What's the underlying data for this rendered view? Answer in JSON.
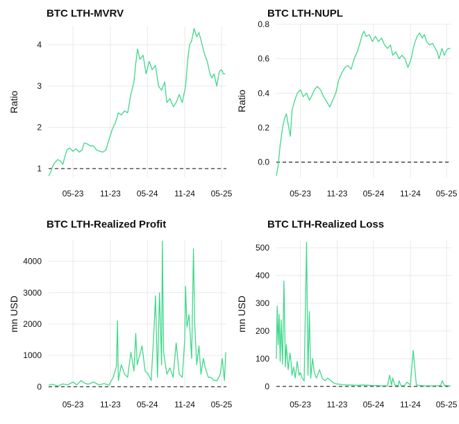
{
  "colors": {
    "series": "#3fd88a",
    "reference": "#222222",
    "grid": "#e9e9e9"
  },
  "chart_data": [
    {
      "type": "line",
      "title": "BTC LTH-MVRV",
      "ylabel": "Ratio",
      "ylim": [
        0.78,
        4.45
      ],
      "yticks": [
        1,
        2,
        3,
        4
      ],
      "ytick_labels": [
        "1",
        "2",
        "3",
        "4"
      ],
      "xlim": [
        "2023-01-01",
        "2025-05-25"
      ],
      "xticks": [
        "2023-05-01",
        "2023-11-01",
        "2024-05-01",
        "2024-11-01",
        "2025-05-01"
      ],
      "xtick_labels": [
        "05-23",
        "11-23",
        "05-24",
        "11-24",
        "05-25"
      ],
      "reference_line": 1,
      "grid": true,
      "series": [
        {
          "x": [
            "2023-01-01",
            "2023-01-10",
            "2023-01-20",
            "2023-02-01",
            "2023-02-15",
            "2023-03-01",
            "2023-03-12",
            "2023-03-20",
            "2023-04-01",
            "2023-04-15",
            "2023-05-01",
            "2023-05-15",
            "2023-06-01",
            "2023-06-15",
            "2023-06-25",
            "2023-07-10",
            "2023-07-25",
            "2023-08-10",
            "2023-08-25",
            "2023-09-10",
            "2023-09-25",
            "2023-10-10",
            "2023-10-25",
            "2023-11-10",
            "2023-11-25",
            "2023-12-10",
            "2023-12-25",
            "2024-01-10",
            "2024-01-25",
            "2024-02-10",
            "2024-02-25",
            "2024-03-05",
            "2024-03-14",
            "2024-03-25",
            "2024-04-10",
            "2024-04-25",
            "2024-05-10",
            "2024-05-25",
            "2024-06-10",
            "2024-06-25",
            "2024-07-10",
            "2024-07-25",
            "2024-08-05",
            "2024-08-20",
            "2024-09-06",
            "2024-09-20",
            "2024-10-05",
            "2024-10-20",
            "2024-11-05",
            "2024-11-15",
            "2024-11-25",
            "2024-12-05",
            "2024-12-17",
            "2024-12-30",
            "2025-01-10",
            "2025-01-21",
            "2025-02-05",
            "2025-02-20",
            "2025-03-05",
            "2025-03-15",
            "2025-03-25",
            "2025-04-08",
            "2025-04-20",
            "2025-05-01",
            "2025-05-10",
            "2025-05-20"
          ],
          "y": [
            0.82,
            0.9,
            1.05,
            1.15,
            1.22,
            1.18,
            1.1,
            1.25,
            1.45,
            1.5,
            1.42,
            1.48,
            1.4,
            1.45,
            1.62,
            1.6,
            1.55,
            1.55,
            1.45,
            1.42,
            1.4,
            1.45,
            1.7,
            1.95,
            2.1,
            2.35,
            2.3,
            2.4,
            2.35,
            2.8,
            3.1,
            3.55,
            3.9,
            3.65,
            3.75,
            3.3,
            3.6,
            3.4,
            3.5,
            3.0,
            2.9,
            3.1,
            2.6,
            2.7,
            2.5,
            2.6,
            2.8,
            2.6,
            3.0,
            3.6,
            4.0,
            4.1,
            4.4,
            4.2,
            4.3,
            4.1,
            3.8,
            3.6,
            3.3,
            3.2,
            3.3,
            3.0,
            3.35,
            3.4,
            3.3,
            3.3
          ]
        }
      ]
    },
    {
      "type": "line",
      "title": "BTC LTH-NUPL",
      "ylabel": "Ratio",
      "ylim": [
        -0.09,
        0.8
      ],
      "yticks": [
        0.0,
        0.2,
        0.4,
        0.6,
        0.8
      ],
      "ytick_labels": [
        "0.0",
        "0.2",
        "0.4",
        "0.6",
        "0.8"
      ],
      "xlim": [
        "2023-01-01",
        "2025-05-25"
      ],
      "xticks": [
        "2023-05-01",
        "2023-11-01",
        "2024-05-01",
        "2024-11-01",
        "2025-05-01"
      ],
      "xtick_labels": [
        "05-23",
        "11-23",
        "05-24",
        "11-24",
        "05-25"
      ],
      "reference_line": 0,
      "grid": true,
      "series": [
        {
          "x": [
            "2023-01-01",
            "2023-01-10",
            "2023-01-20",
            "2023-02-01",
            "2023-02-10",
            "2023-02-20",
            "2023-03-01",
            "2023-03-12",
            "2023-03-20",
            "2023-04-01",
            "2023-04-15",
            "2023-05-01",
            "2023-05-15",
            "2023-06-01",
            "2023-06-15",
            "2023-06-25",
            "2023-07-10",
            "2023-07-25",
            "2023-08-10",
            "2023-08-25",
            "2023-09-10",
            "2023-09-25",
            "2023-10-10",
            "2023-10-25",
            "2023-11-10",
            "2023-11-25",
            "2023-12-10",
            "2023-12-25",
            "2024-01-10",
            "2024-01-25",
            "2024-02-10",
            "2024-02-25",
            "2024-03-05",
            "2024-03-14",
            "2024-03-25",
            "2024-04-10",
            "2024-04-25",
            "2024-05-10",
            "2024-05-25",
            "2024-06-10",
            "2024-06-25",
            "2024-07-10",
            "2024-07-25",
            "2024-08-05",
            "2024-08-20",
            "2024-09-06",
            "2024-09-20",
            "2024-10-05",
            "2024-10-20",
            "2024-11-05",
            "2024-11-15",
            "2024-11-25",
            "2024-12-05",
            "2024-12-17",
            "2024-12-30",
            "2025-01-10",
            "2025-01-21",
            "2025-02-05",
            "2025-02-20",
            "2025-03-05",
            "2025-03-15",
            "2025-03-25",
            "2025-04-08",
            "2025-04-20",
            "2025-05-01",
            "2025-05-10",
            "2025-05-20"
          ],
          "y": [
            -0.08,
            -0.02,
            0.1,
            0.2,
            0.25,
            0.28,
            0.22,
            0.15,
            0.3,
            0.35,
            0.4,
            0.42,
            0.38,
            0.4,
            0.36,
            0.38,
            0.42,
            0.44,
            0.42,
            0.38,
            0.35,
            0.32,
            0.36,
            0.4,
            0.48,
            0.52,
            0.55,
            0.56,
            0.54,
            0.6,
            0.64,
            0.7,
            0.74,
            0.76,
            0.73,
            0.74,
            0.7,
            0.73,
            0.7,
            0.72,
            0.68,
            0.66,
            0.68,
            0.62,
            0.64,
            0.6,
            0.62,
            0.6,
            0.55,
            0.6,
            0.66,
            0.7,
            0.73,
            0.75,
            0.72,
            0.74,
            0.7,
            0.68,
            0.69,
            0.66,
            0.64,
            0.6,
            0.66,
            0.62,
            0.65,
            0.66,
            0.66
          ]
        }
      ]
    },
    {
      "type": "line",
      "title": "BTC LTH-Realized Profit",
      "ylabel": "mn USD",
      "ylim": [
        -60,
        4700
      ],
      "yticks": [
        0,
        1000,
        2000,
        3000,
        4000
      ],
      "ytick_labels": [
        "0",
        "1000",
        "2000",
        "3000",
        "4000"
      ],
      "xlim": [
        "2023-01-01",
        "2025-05-25"
      ],
      "xticks": [
        "2023-05-01",
        "2023-11-01",
        "2024-05-01",
        "2024-11-01",
        "2025-05-01"
      ],
      "xtick_labels": [
        "05-23",
        "11-23",
        "05-24",
        "11-24",
        "05-25"
      ],
      "reference_line": 0,
      "grid": true,
      "series": [
        {
          "x": [
            "2023-01-01",
            "2023-01-20",
            "2023-02-15",
            "2023-03-12",
            "2023-04-05",
            "2023-05-01",
            "2023-05-20",
            "2023-06-10",
            "2023-06-25",
            "2023-07-15",
            "2023-08-10",
            "2023-09-05",
            "2023-10-01",
            "2023-10-25",
            "2023-11-15",
            "2023-12-01",
            "2023-12-06",
            "2023-12-10",
            "2023-12-25",
            "2024-01-10",
            "2024-01-25",
            "2024-02-10",
            "2024-02-25",
            "2024-03-05",
            "2024-03-12",
            "2024-03-20",
            "2024-04-05",
            "2024-04-20",
            "2024-05-05",
            "2024-05-20",
            "2024-06-01",
            "2024-06-10",
            "2024-06-20",
            "2024-06-30",
            "2024-07-10",
            "2024-07-14",
            "2024-07-20",
            "2024-08-05",
            "2024-08-20",
            "2024-09-05",
            "2024-09-20",
            "2024-10-05",
            "2024-10-20",
            "2024-11-01",
            "2024-11-05",
            "2024-11-12",
            "2024-11-22",
            "2024-12-05",
            "2024-12-14",
            "2024-12-20",
            "2024-12-30",
            "2025-01-10",
            "2025-01-20",
            "2025-02-01",
            "2025-02-10",
            "2025-02-25",
            "2025-03-10",
            "2025-03-25",
            "2025-04-10",
            "2025-04-25",
            "2025-05-05",
            "2025-05-15",
            "2025-05-22"
          ],
          "y": [
            50,
            80,
            20,
            90,
            60,
            150,
            60,
            200,
            120,
            80,
            150,
            60,
            100,
            50,
            300,
            650,
            2100,
            200,
            700,
            400,
            300,
            1100,
            500,
            1700,
            700,
            900,
            1300,
            500,
            400,
            200,
            1600,
            2900,
            300,
            3000,
            700,
            4650,
            1100,
            400,
            600,
            300,
            1400,
            400,
            300,
            1500,
            3200,
            1900,
            2300,
            900,
            4400,
            2000,
            700,
            1300,
            400,
            900,
            600,
            300,
            300,
            200,
            200,
            400,
            900,
            200,
            1100
          ]
        }
      ]
    },
    {
      "type": "line",
      "title": "BTC LTH-Realized Loss",
      "ylabel": "mn USD",
      "ylim": [
        -8,
        530
      ],
      "yticks": [
        0,
        100,
        200,
        300,
        400,
        500
      ],
      "ytick_labels": [
        "0",
        "100",
        "200",
        "300",
        "400",
        "500"
      ],
      "xlim": [
        "2023-01-01",
        "2025-05-25"
      ],
      "xticks": [
        "2023-05-01",
        "2023-11-01",
        "2024-05-01",
        "2024-11-01",
        "2025-05-01"
      ],
      "xtick_labels": [
        "05-23",
        "11-23",
        "05-24",
        "11-24",
        "05-25"
      ],
      "reference_line": 0,
      "grid": true,
      "series": [
        {
          "x": [
            "2023-01-01",
            "2023-01-05",
            "2023-01-10",
            "2023-01-15",
            "2023-01-20",
            "2023-01-25",
            "2023-02-01",
            "2023-02-08",
            "2023-02-15",
            "2023-02-20",
            "2023-03-01",
            "2023-03-10",
            "2023-03-15",
            "2023-03-20",
            "2023-03-28",
            "2023-04-05",
            "2023-04-15",
            "2023-04-25",
            "2023-05-01",
            "2023-05-10",
            "2023-05-20",
            "2023-06-01",
            "2023-06-08",
            "2023-06-15",
            "2023-06-22",
            "2023-07-01",
            "2023-07-10",
            "2023-07-20",
            "2023-08-05",
            "2023-08-18",
            "2023-09-01",
            "2023-09-15",
            "2023-10-01",
            "2023-10-20",
            "2023-11-10",
            "2023-12-01",
            "2023-12-20",
            "2024-01-15",
            "2024-02-10",
            "2024-03-10",
            "2024-04-10",
            "2024-04-25",
            "2024-05-10",
            "2024-06-10",
            "2024-07-10",
            "2024-07-20",
            "2024-07-30",
            "2024-08-05",
            "2024-08-15",
            "2024-09-01",
            "2024-09-06",
            "2024-09-15",
            "2024-10-01",
            "2024-10-15",
            "2024-11-01",
            "2024-11-15",
            "2024-12-01",
            "2025-01-01",
            "2025-02-01",
            "2025-03-01",
            "2025-04-01",
            "2025-04-10",
            "2025-04-20",
            "2025-05-10",
            "2025-05-22"
          ],
          "y": [
            100,
            290,
            150,
            260,
            90,
            240,
            80,
            380,
            70,
            150,
            60,
            120,
            90,
            40,
            70,
            30,
            90,
            40,
            50,
            30,
            20,
            520,
            40,
            270,
            30,
            100,
            50,
            30,
            60,
            30,
            20,
            30,
            20,
            10,
            8,
            6,
            5,
            5,
            4,
            5,
            4,
            3,
            3,
            2,
            2,
            40,
            5,
            30,
            5,
            3,
            20,
            3,
            2,
            15,
            5,
            130,
            5,
            2,
            2,
            2,
            3,
            20,
            4,
            2,
            2
          ]
        }
      ]
    }
  ]
}
